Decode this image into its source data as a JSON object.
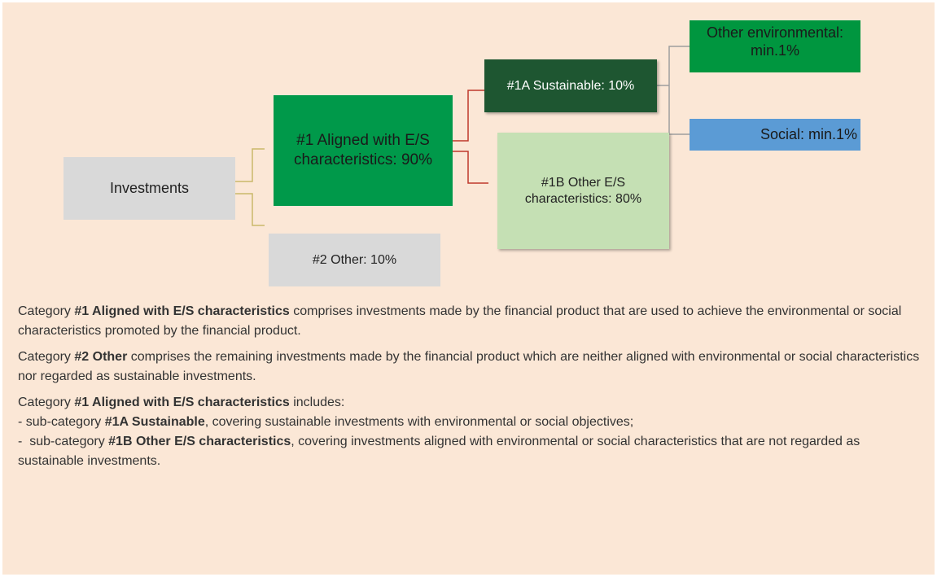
{
  "nodes": [
    {
      "label": "Investments"
    },
    {
      "label": "#1 Aligned with E/S characteristics: 90%"
    },
    {
      "label": "#2 Other: 10%"
    },
    {
      "label": "#1A Sustainable: 10%"
    },
    {
      "label": "#1B Other E/S characteristics: 80%"
    },
    {
      "label": "Other environmental: min.1%"
    },
    {
      "label": "Social: min.1%"
    }
  ],
  "paragraphs": [
    [
      "Category ",
      "#1 Aligned with E/S characteristics",
      " comprises investments made by the financial product that are used to achieve the environmental or social characteristics promoted by the financial product."
    ],
    [
      "Category ",
      "#2 Other",
      " comprises the remaining investments made by the financial product which are neither aligned with environmental or social characteristics nor regarded as sustainable investments."
    ],
    [
      "Category ",
      "#1 Aligned with E/S characteristics",
      " includes:"
    ],
    [
      "- sub-category ",
      "#1A Sustainable",
      ", covering sustainable investments with environmental or social objectives;"
    ],
    [
      "-  sub-category ",
      "#1B Other E/S characteristics",
      ", covering investments aligned with environmental or social characteristics that are not regarded as sustainable investments."
    ]
  ]
}
